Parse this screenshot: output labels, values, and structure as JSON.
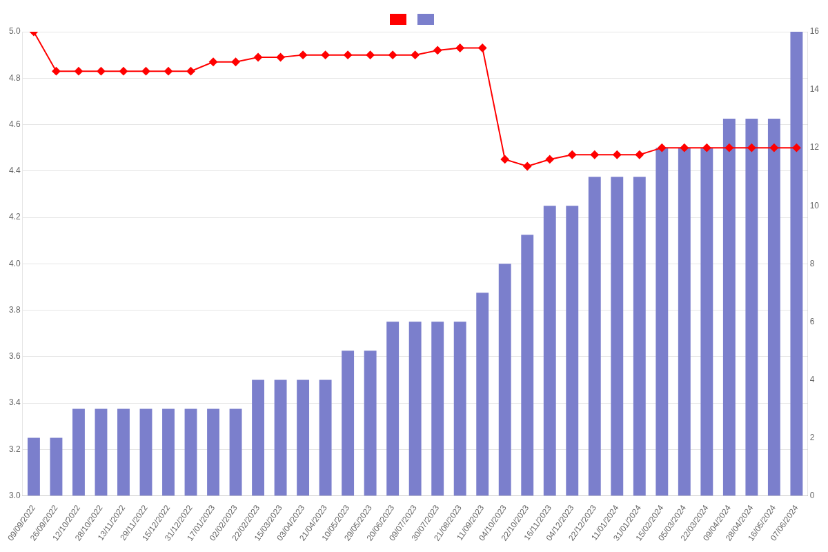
{
  "chart_data": {
    "type": "bar",
    "categories": [
      "09/09/2022",
      "26/09/2022",
      "12/10/2022",
      "28/10/2022",
      "13/11/2022",
      "29/11/2022",
      "15/12/2022",
      "31/12/2022",
      "17/01/2023",
      "02/02/2023",
      "22/02/2023",
      "15/03/2023",
      "03/04/2023",
      "21/04/2023",
      "10/05/2023",
      "29/05/2023",
      "20/06/2023",
      "09/07/2023",
      "30/07/2023",
      "21/08/2023",
      "11/09/2023",
      "04/10/2023",
      "22/10/2023",
      "16/11/2023",
      "04/12/2023",
      "22/12/2023",
      "11/01/2024",
      "31/01/2024",
      "15/02/2024",
      "05/03/2024",
      "22/03/2024",
      "09/04/2024",
      "28/04/2024",
      "16/05/2024",
      "07/06/2024"
    ],
    "series": [
      {
        "type": "line",
        "color": "#ff0000",
        "marker": "diamond",
        "values": [
          5.0,
          4.83,
          4.83,
          4.83,
          4.83,
          4.83,
          4.83,
          4.83,
          4.87,
          4.87,
          4.89,
          4.89,
          4.9,
          4.9,
          4.9,
          4.9,
          4.9,
          4.9,
          4.92,
          4.93,
          4.93,
          4.45,
          4.42,
          4.45,
          4.47,
          4.47,
          4.47,
          4.47,
          4.5,
          4.5,
          4.5,
          4.5,
          4.5,
          4.5,
          4.5
        ]
      },
      {
        "type": "bar",
        "color": "#7b7fcc",
        "axis": "y2",
        "values": [
          2,
          2,
          3,
          3,
          3,
          3,
          3,
          3,
          3,
          3,
          4,
          4,
          4,
          4,
          5,
          5,
          6,
          6,
          6,
          6,
          7,
          8,
          9,
          10,
          10,
          11,
          11,
          11,
          12,
          12,
          12,
          13,
          13,
          13,
          16
        ]
      }
    ],
    "ylim": [
      3.0,
      5.0
    ],
    "yticks": [
      {
        "value": 3.0,
        "label": "3.0"
      },
      3.2,
      3.4,
      3.6,
      3.8,
      {
        "value": 4.0,
        "label": "4.0"
      },
      4.2,
      4.4,
      4.6,
      4.8,
      {
        "value": 5.0,
        "label": "5.0"
      }
    ],
    "y2lim": [
      0,
      16
    ],
    "y2ticks": [
      0,
      2,
      4,
      6,
      8,
      10,
      12,
      14,
      16
    ],
    "grid": true,
    "legend": "top"
  }
}
